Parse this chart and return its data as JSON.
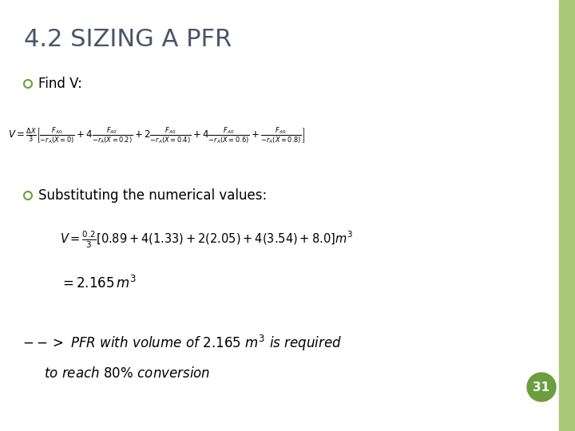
{
  "title": "4.2 SIZING A PFR",
  "title_color": "#4A5568",
  "title_fontsize": 22,
  "background_color": "#ffffff",
  "border_color": "#A8C878",
  "bullet_color": "#6B9E3E",
  "bullet1": "Find V:",
  "bullet2": "Substituting the numerical values:",
  "page_num": "31",
  "page_circle_color": "#6B9E3E",
  "page_text_color": "#ffffff",
  "eq1_fontsize": 8.5,
  "eq2_fontsize": 10.5,
  "eq3_fontsize": 12,
  "text_fontsize": 12,
  "footer_fontsize": 12
}
